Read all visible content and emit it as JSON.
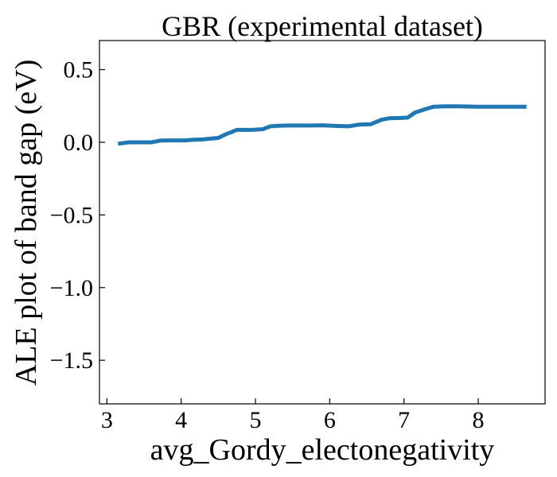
{
  "chart_data": {
    "type": "line",
    "title": "GBR (experimental dataset)",
    "xlabel": "avg_Gordy_electonegativity",
    "ylabel": "ALE plot of band gap (eV)",
    "xlim": [
      2.9,
      8.9
    ],
    "ylim": [
      -1.8,
      0.7
    ],
    "xticks": [
      3,
      4,
      5,
      6,
      7,
      8
    ],
    "yticks": [
      0.5,
      0.0,
      -0.5,
      -1.0,
      -1.5
    ],
    "xtick_labels": [
      "3",
      "4",
      "5",
      "6",
      "7",
      "8"
    ],
    "ytick_labels": [
      "0.5",
      "0.0",
      "−0.5",
      "−1.0",
      "−1.5"
    ],
    "grid": false,
    "line_color": "#1f77b4",
    "series": [
      {
        "x": [
          3.15,
          3.3,
          3.45,
          3.6,
          3.72,
          3.85,
          4.05,
          4.15,
          4.3,
          4.4,
          4.5,
          4.6,
          4.75,
          4.85,
          4.95,
          5.1,
          5.2,
          5.3,
          5.45,
          5.6,
          5.75,
          5.9,
          6.05,
          6.25,
          6.4,
          6.55,
          6.7,
          6.8,
          6.95,
          7.05,
          7.15,
          7.3,
          7.4,
          7.55,
          7.75,
          8.0,
          8.3,
          8.65
        ],
        "y": [
          -0.01,
          0.0,
          0.0,
          0.0,
          0.012,
          0.013,
          0.013,
          0.017,
          0.02,
          0.025,
          0.03,
          0.055,
          0.085,
          0.085,
          0.085,
          0.09,
          0.11,
          0.113,
          0.115,
          0.115,
          0.115,
          0.117,
          0.113,
          0.11,
          0.122,
          0.124,
          0.155,
          0.165,
          0.167,
          0.17,
          0.205,
          0.23,
          0.245,
          0.247,
          0.247,
          0.245,
          0.245,
          0.245
        ]
      }
    ]
  }
}
